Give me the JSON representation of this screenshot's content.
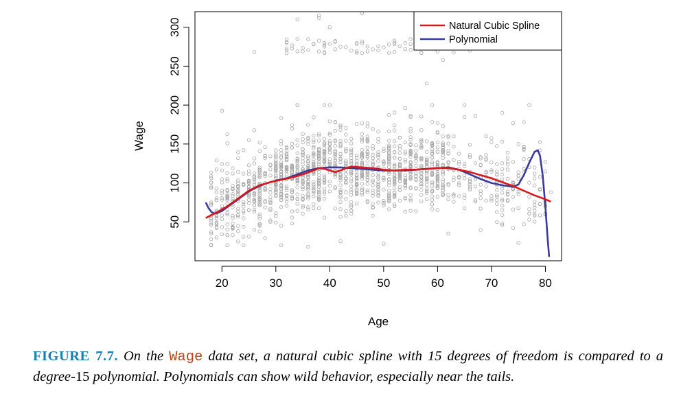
{
  "chart_data": {
    "type": "scatter",
    "title": "",
    "xlabel": "Age",
    "ylabel": "Wage",
    "xlim": [
      15,
      83
    ],
    "ylim": [
      0,
      320
    ],
    "xticks": [
      20,
      30,
      40,
      50,
      60,
      70,
      80
    ],
    "yticks": [
      50,
      100,
      150,
      200,
      250,
      300
    ],
    "grid": false,
    "legend_position": "top-right",
    "points_color": "#a8a8a8",
    "scatter_main_count": 1500,
    "scatter_main_mean_curve": [
      [
        18,
        68
      ],
      [
        22,
        80
      ],
      [
        28,
        100
      ],
      [
        34,
        108
      ],
      [
        40,
        118
      ],
      [
        46,
        118
      ],
      [
        52,
        116
      ],
      [
        58,
        118
      ],
      [
        64,
        112
      ],
      [
        70,
        100
      ],
      [
        80,
        90
      ]
    ],
    "scatter_main_spread": 24,
    "scatter_main_range": [
      0,
      200
    ],
    "scatter_high_count": 70,
    "scatter_high_range": [
      265,
      285
    ],
    "outliers": [
      [
        34,
        310
      ],
      [
        38,
        312
      ],
      [
        38,
        315
      ],
      [
        40,
        300
      ],
      [
        46,
        318
      ],
      [
        58,
        228
      ],
      [
        63,
        318
      ],
      [
        26,
        268
      ],
      [
        77,
        200
      ],
      [
        72,
        190
      ],
      [
        76,
        178
      ],
      [
        79,
        142
      ],
      [
        75,
        150
      ],
      [
        69,
        160
      ],
      [
        18,
        35
      ],
      [
        19,
        30
      ],
      [
        31,
        20
      ],
      [
        36,
        18
      ],
      [
        42,
        25
      ],
      [
        50,
        22
      ],
      [
        62,
        35
      ],
      [
        71,
        50
      ],
      [
        74,
        42
      ],
      [
        78,
        58
      ],
      [
        80,
        70
      ],
      [
        81,
        88
      ],
      [
        66,
        270
      ],
      [
        59,
        282
      ],
      [
        52,
        278
      ],
      [
        61,
        258
      ]
    ],
    "series": [
      {
        "name": "Natural Cubic Spline",
        "color": "#d7191c",
        "x": [
          17,
          19,
          21,
          23,
          25,
          27,
          29,
          31,
          33,
          35,
          37,
          38,
          39,
          40,
          41,
          42,
          43,
          44,
          46,
          48,
          50,
          52,
          54,
          56,
          58,
          60,
          62,
          64,
          66,
          68,
          70,
          72,
          74,
          76,
          78,
          80,
          81
        ],
        "values": [
          55,
          62,
          70,
          80,
          90,
          97,
          101,
          104,
          107,
          111,
          116,
          119,
          118,
          116,
          114,
          116,
          119,
          121,
          120,
          119,
          117,
          116,
          117,
          117,
          118,
          119,
          119,
          117,
          114,
          110,
          106,
          101,
          96,
          90,
          84,
          79,
          76
        ]
      },
      {
        "name": "Polynomial",
        "color": "#3a3a9e",
        "x": [
          17,
          17.5,
          18,
          18.5,
          19,
          20,
          21,
          22,
          23,
          24,
          25,
          26,
          27,
          28,
          29,
          30,
          32,
          34,
          36,
          38,
          40,
          42,
          44,
          46,
          48,
          50,
          52,
          54,
          56,
          58,
          60,
          62,
          64,
          66,
          68,
          70,
          72,
          74,
          75,
          76,
          77,
          78,
          78.6,
          79,
          79.5,
          80,
          80.4,
          80.7
        ],
        "values": [
          75,
          68,
          63,
          61,
          61,
          64,
          69,
          74,
          79,
          84,
          89,
          93,
          96,
          99,
          101,
          103,
          106,
          111,
          116,
          119,
          120,
          120,
          119,
          118,
          117,
          116,
          116,
          116,
          117,
          118,
          119,
          120,
          117,
          111,
          105,
          100,
          97,
          95,
          98,
          110,
          126,
          140,
          142,
          135,
          110,
          70,
          30,
          5
        ]
      }
    ]
  },
  "caption": {
    "label": "FIGURE 7.7.",
    "text_a": "On the",
    "dataset": "Wage",
    "text_b": "data set, a natural cubic spline with 15 degrees of freedom is compared to a degree-",
    "number": "15",
    "text_c": "polynomial. Polynomials can show wild behavior, especially near the tails."
  }
}
